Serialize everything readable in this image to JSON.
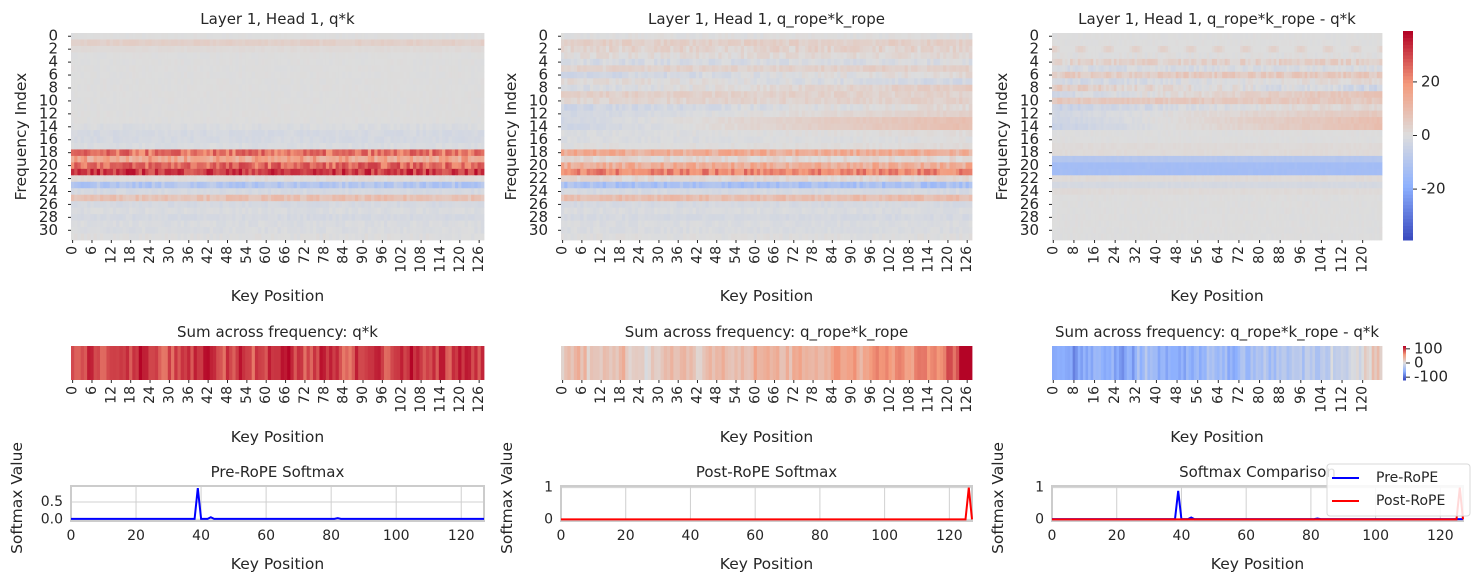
{
  "chart_data": [
    {
      "type": "heatmap",
      "id": "h1",
      "title": "Layer 1, Head 1, q*k",
      "xlabel": "Key Position",
      "ylabel": "Frequency Index",
      "n_rows": 32,
      "n_cols": 128,
      "xticks": [
        0,
        6,
        12,
        18,
        24,
        30,
        36,
        42,
        48,
        54,
        60,
        66,
        72,
        78,
        84,
        90,
        96,
        102,
        108,
        114,
        120,
        126
      ],
      "yticks": [
        0,
        2,
        4,
        6,
        8,
        10,
        12,
        14,
        16,
        18,
        20,
        22,
        24,
        26,
        28,
        30
      ],
      "vlim": [
        -39,
        39
      ],
      "row_start": [
        0,
        4,
        1,
        0,
        0,
        0,
        0,
        0,
        0,
        0,
        0,
        0,
        0,
        0,
        -1,
        -2,
        -2,
        -1,
        24,
        16,
        26,
        32,
        1,
        -10,
        -2,
        8,
        -2,
        -1,
        -2,
        -1,
        -1,
        0
      ],
      "row_end": [
        0,
        4,
        1,
        0,
        0,
        0,
        0,
        0,
        0,
        0,
        0,
        0,
        0,
        0,
        -1,
        -2,
        -2,
        -1,
        24,
        16,
        26,
        32,
        1,
        -10,
        -2,
        8,
        -2,
        -1,
        -2,
        -1,
        -1,
        0
      ],
      "row_noise": [
        0.5,
        1,
        0.5,
        0.5,
        0.5,
        0.5,
        0.5,
        0.5,
        0.5,
        0.5,
        0.5,
        0.5,
        0.5,
        0.5,
        1,
        1,
        1,
        1,
        6,
        6,
        6,
        6,
        1,
        4,
        1,
        3,
        1,
        1,
        1,
        1,
        1,
        1
      ]
    },
    {
      "type": "heatmap",
      "id": "h2",
      "title": "Layer 1, Head 1, q_rope*k_rope",
      "xlabel": "Key Position",
      "ylabel": "Frequency Index",
      "n_rows": 32,
      "n_cols": 128,
      "xticks": [
        0,
        6,
        12,
        18,
        24,
        30,
        36,
        42,
        48,
        54,
        60,
        66,
        72,
        78,
        84,
        90,
        96,
        102,
        108,
        114,
        120,
        126
      ],
      "yticks": [
        0,
        2,
        4,
        6,
        8,
        10,
        12,
        14,
        16,
        18,
        20,
        22,
        24,
        26,
        28,
        30
      ],
      "vlim": [
        -39,
        39
      ],
      "row_start": [
        0,
        4,
        3,
        1,
        -2,
        3,
        -4,
        2,
        -2,
        4,
        2,
        -4,
        -3,
        -3,
        -4,
        -1,
        -1,
        0,
        14,
        2,
        14,
        22,
        2,
        -12,
        -2,
        9,
        -2,
        -1,
        -2,
        -1,
        -1,
        0
      ],
      "row_end": [
        0,
        4,
        3,
        2,
        -1,
        4,
        2,
        -3,
        5,
        3,
        4,
        2,
        4,
        9,
        9,
        1,
        0,
        1,
        14,
        2,
        14,
        22,
        2,
        -12,
        -2,
        9,
        -2,
        -1,
        -2,
        -1,
        -1,
        0
      ],
      "row_noise": [
        1,
        2,
        3,
        2,
        2,
        2,
        2,
        2,
        2,
        2,
        2,
        2,
        1,
        1,
        1,
        1,
        1,
        1,
        5,
        3,
        5,
        5,
        2,
        4,
        1,
        3,
        1,
        1,
        1,
        1,
        1,
        1
      ]
    },
    {
      "type": "heatmap",
      "id": "h3",
      "title": "Layer 1, Head 1, q_rope*k_rope - q*k",
      "xlabel": "Key Position",
      "ylabel": "Frequency Index",
      "n_rows": 32,
      "n_cols": 128,
      "xticks": [
        0,
        8,
        16,
        24,
        32,
        40,
        48,
        56,
        64,
        72,
        80,
        88,
        96,
        104,
        112,
        120
      ],
      "yticks": [
        0,
        2,
        4,
        6,
        8,
        10,
        12,
        14,
        16,
        18,
        20,
        22,
        24,
        26,
        28,
        30
      ],
      "vlim": [
        -39,
        39
      ],
      "colorbar_ticks": [
        20,
        0,
        -20
      ],
      "row_start": [
        0,
        0,
        4,
        0,
        3,
        -2,
        5,
        -3,
        5,
        -3,
        6,
        -5,
        -3,
        -4,
        -5,
        0,
        0,
        1,
        1,
        -10,
        -14,
        -14,
        1,
        -2,
        1,
        0,
        0,
        0,
        0,
        0,
        0,
        0
      ],
      "row_end": [
        0,
        0,
        4,
        0,
        4,
        -1,
        6,
        2,
        -4,
        8,
        6,
        3,
        6,
        9,
        9,
        0,
        0,
        1,
        1,
        -10,
        -14,
        -14,
        1,
        -2,
        1,
        0,
        0,
        0,
        0,
        0,
        0,
        0
      ],
      "row_noise": [
        0.5,
        0.5,
        4,
        1,
        3,
        2,
        3,
        2,
        3,
        2,
        2,
        2,
        1,
        1,
        1,
        0.5,
        0.5,
        0.5,
        0.5,
        0.5,
        0.5,
        0.5,
        0.5,
        0.5,
        0.5,
        0.5,
        0.5,
        0.5,
        0.5,
        0.5,
        0.5,
        0.5
      ]
    },
    {
      "type": "heatmap",
      "id": "s1",
      "title": "Sum across frequency: q*k",
      "xlabel": "Key Position",
      "xticks": [
        0,
        6,
        12,
        18,
        24,
        30,
        36,
        42,
        48,
        54,
        60,
        66,
        72,
        78,
        84,
        90,
        96,
        102,
        108,
        114,
        120,
        126
      ],
      "vlim": [
        -120,
        120
      ],
      "segment_size": 4,
      "segments": [
        95,
        100,
        88,
        105,
        92,
        110,
        98,
        85,
        100,
        95,
        108,
        90,
        96,
        104,
        88,
        100,
        110,
        95,
        90,
        102,
        98,
        86,
        105,
        100,
        92,
        97,
        108,
        94,
        99,
        90,
        104,
        96
      ]
    },
    {
      "type": "heatmap",
      "id": "s2",
      "title": "Sum across frequency: q_rope*k_rope",
      "xlabel": "Key Position",
      "xticks": [
        0,
        6,
        12,
        18,
        24,
        30,
        36,
        42,
        48,
        54,
        60,
        66,
        72,
        78,
        84,
        90,
        96,
        102,
        108,
        114,
        120,
        126
      ],
      "vlim": [
        -120,
        120
      ],
      "segment_size": 4,
      "segments": [
        20,
        35,
        15,
        25,
        30,
        20,
        10,
        25,
        35,
        30,
        20,
        25,
        40,
        30,
        35,
        45,
        40,
        35,
        50,
        40,
        45,
        55,
        50,
        45,
        60,
        55,
        65,
        60,
        70,
        75,
        90,
        140
      ]
    },
    {
      "type": "heatmap",
      "id": "s3",
      "title": "Sum across frequency: q_rope*k_rope - q*k",
      "xlabel": "Key Position",
      "xticks": [
        0,
        8,
        16,
        24,
        32,
        40,
        48,
        56,
        64,
        72,
        80,
        88,
        96,
        104,
        112,
        120
      ],
      "vlim": [
        -120,
        120
      ],
      "colorbar_ticks": [
        100,
        0,
        -100
      ],
      "segment_size": 4,
      "segments": [
        -60,
        -70,
        -75,
        -65,
        -60,
        -55,
        -70,
        -65,
        -45,
        -40,
        -55,
        -60,
        -55,
        -60,
        -50,
        -45,
        -50,
        -55,
        -45,
        -40,
        -35,
        -40,
        -35,
        -30,
        -30,
        -25,
        -20,
        -15,
        -10,
        -5,
        5,
        20
      ]
    },
    {
      "type": "line",
      "id": "l1",
      "title": "Pre-RoPE Softmax",
      "xlabel": "Key Position",
      "ylabel": "Softmax Value",
      "xlim": [
        0,
        127
      ],
      "ylim": [
        -0.05,
        0.96
      ],
      "xticks": [
        0,
        20,
        40,
        60,
        80,
        100,
        120
      ],
      "yticks": [
        0.0,
        0.5
      ],
      "ytick_labels": [
        "0.0",
        "0.5"
      ],
      "series": [
        {
          "name": "Pre-RoPE",
          "color": "#0000ff",
          "x": [
            0,
            38,
            39,
            40,
            42,
            43,
            44,
            81,
            82,
            83,
            127
          ],
          "y": [
            0.01,
            0.01,
            0.9,
            0.01,
            0.01,
            0.06,
            0.01,
            0.01,
            0.03,
            0.01,
            0.01
          ]
        }
      ]
    },
    {
      "type": "line",
      "id": "l2",
      "title": "Post-RoPE Softmax",
      "xlabel": "Key Position",
      "ylabel": "Softmax Value",
      "xlim": [
        0,
        127
      ],
      "ylim": [
        -0.05,
        1.05
      ],
      "xticks": [
        0,
        20,
        40,
        60,
        80,
        100,
        120
      ],
      "yticks": [
        0,
        1
      ],
      "ytick_labels": [
        "0",
        "1"
      ],
      "series": [
        {
          "name": "Post-RoPE",
          "color": "#ff0000",
          "x": [
            0,
            125,
            126,
            127
          ],
          "y": [
            0,
            0,
            1,
            0
          ]
        }
      ]
    },
    {
      "type": "line",
      "id": "l3",
      "title": "Softmax Comparison",
      "xlabel": "Key Position",
      "ylabel": "Softmax Value",
      "xlim": [
        0,
        127
      ],
      "ylim": [
        -0.05,
        1.05
      ],
      "xticks": [
        0,
        20,
        40,
        60,
        80,
        100,
        120
      ],
      "yticks": [
        0,
        1
      ],
      "ytick_labels": [
        "0",
        "1"
      ],
      "legend": "upper-right",
      "series": [
        {
          "name": "Pre-RoPE",
          "color": "#0000ff",
          "x": [
            0,
            38,
            39,
            40,
            42,
            43,
            44,
            81,
            82,
            83,
            127
          ],
          "y": [
            0.01,
            0.01,
            0.9,
            0.01,
            0.01,
            0.06,
            0.01,
            0.01,
            0.03,
            0.01,
            0.01
          ]
        },
        {
          "name": "Post-RoPE",
          "color": "#ff0000",
          "x": [
            0,
            125,
            126,
            127
          ],
          "y": [
            0,
            0,
            1,
            0
          ]
        }
      ]
    }
  ]
}
